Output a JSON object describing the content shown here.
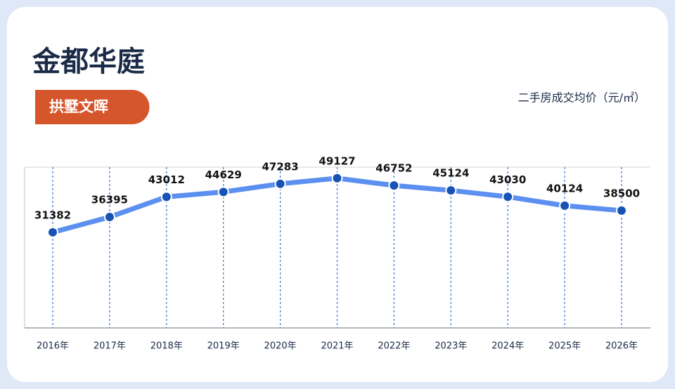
{
  "chart_data": {
    "type": "line",
    "title": "金都华庭",
    "subtitle": "拱墅文晖",
    "ylabel": "二手房成交均价（元/㎡）",
    "categories": [
      "2016年",
      "2017年",
      "2018年",
      "2019年",
      "2020年",
      "2021年",
      "2022年",
      "2023年",
      "2024年",
      "2025年",
      "2026年"
    ],
    "values": [
      31382,
      36395,
      43012,
      44629,
      47283,
      49127,
      46752,
      45124,
      43030,
      40124,
      38500
    ],
    "color": "#5b8ff0",
    "marker_color": "#1752b5",
    "ylim": [
      0,
      53000
    ],
    "grid": true
  }
}
